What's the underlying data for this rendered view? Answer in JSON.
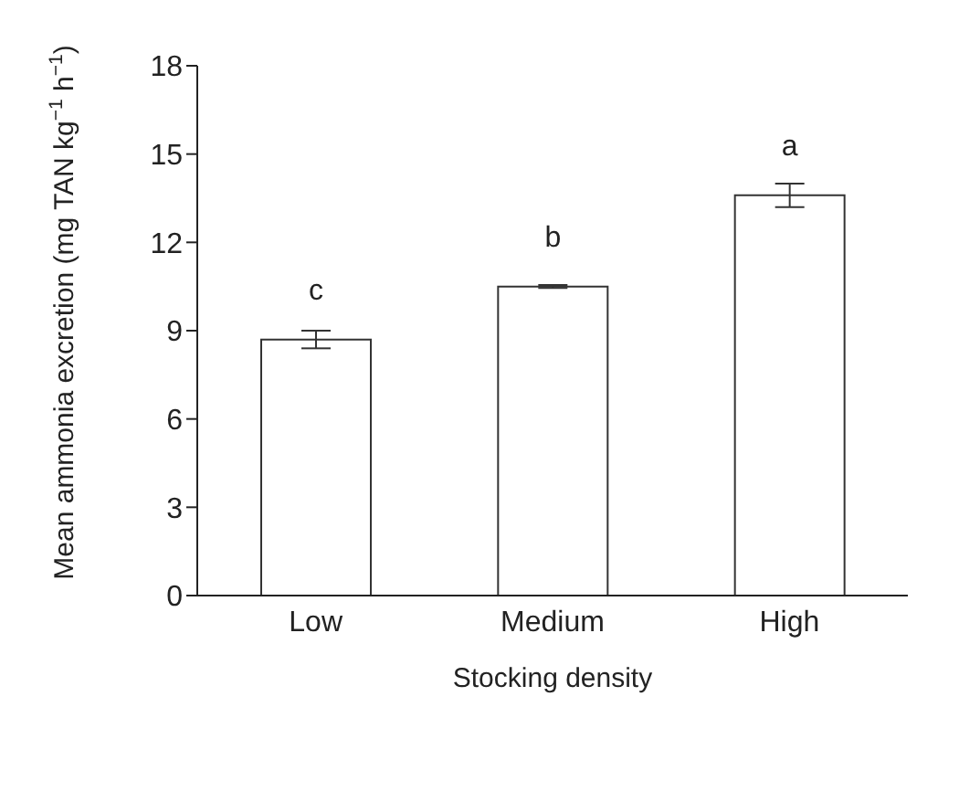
{
  "chart_data": {
    "type": "bar",
    "xlabel": "Stocking density",
    "ylabel": "Mean ammonia excretion (mg TAN kg$^{−1}$ h$^{−1}$)",
    "categories": [
      "Low",
      "Medium",
      "High"
    ],
    "values": [
      8.7,
      10.5,
      13.6
    ],
    "errors": [
      0.3,
      0.05,
      0.4
    ],
    "color": "#ffffff",
    "ylim": [
      0,
      18
    ],
    "yticks": [
      0,
      3,
      6,
      9,
      12,
      15,
      18
    ],
    "grid": false,
    "legend": false,
    "annotations": [
      "c",
      "b",
      "a"
    ]
  }
}
